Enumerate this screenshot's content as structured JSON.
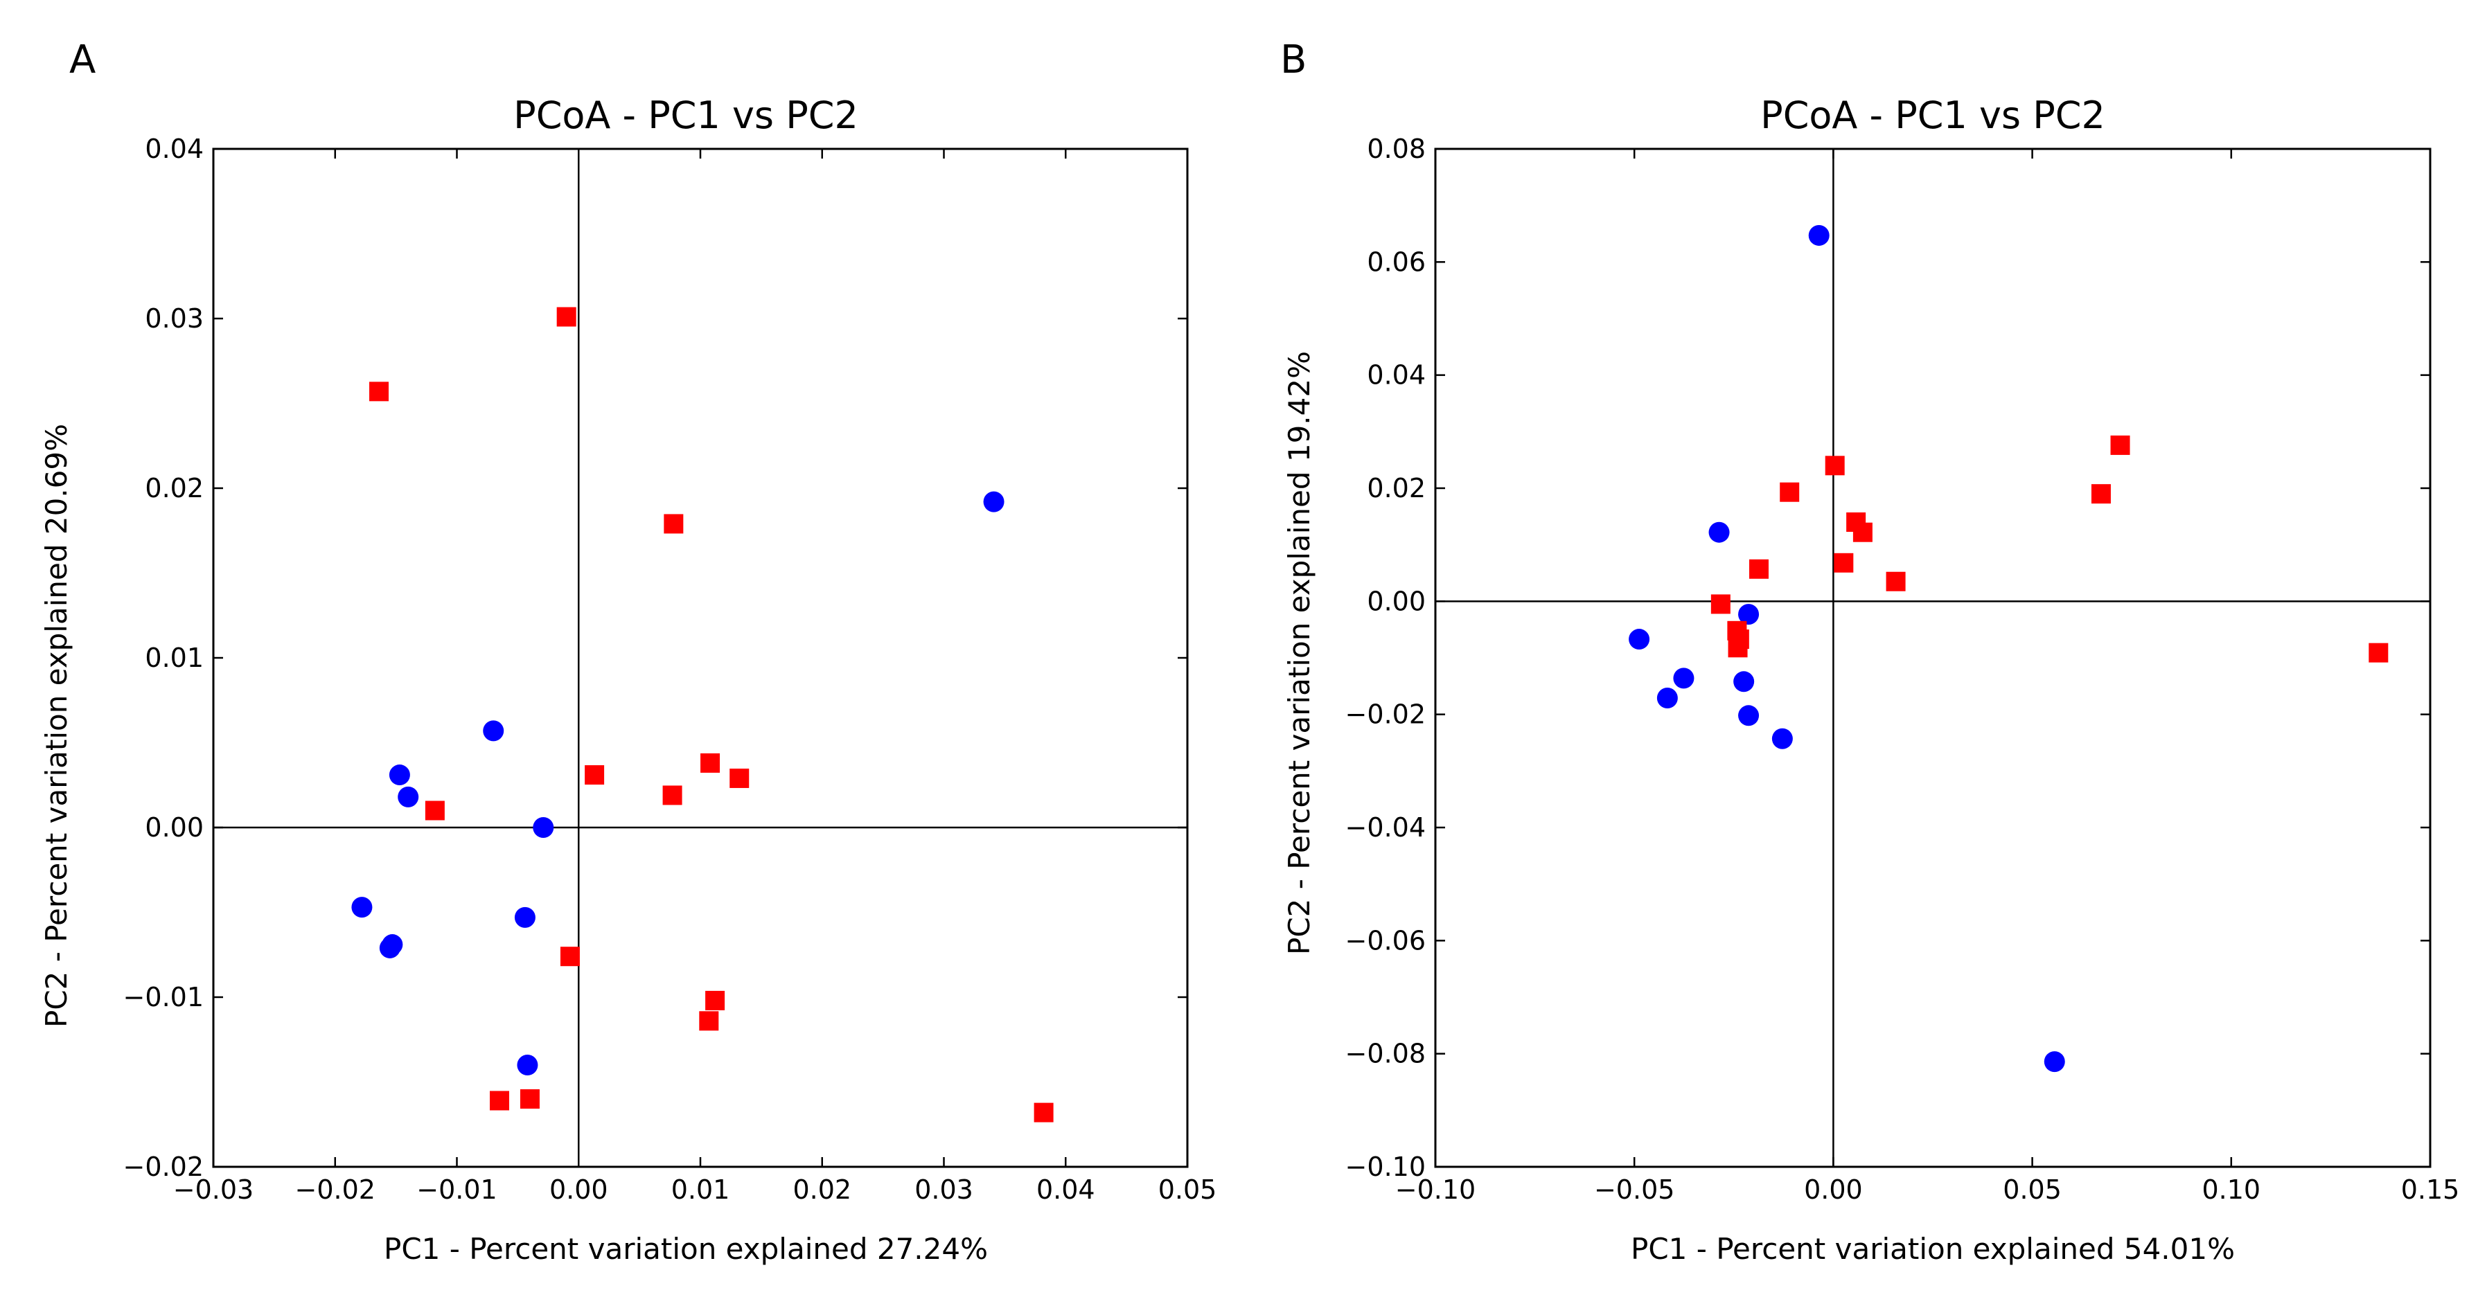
{
  "colors": {
    "group_circle": "#0000ff",
    "group_square": "#ff0000",
    "axis": "#000000"
  },
  "chart_data": [
    {
      "panel": "A",
      "type": "scatter",
      "title": "PCoA - PC1 vs PC2",
      "xlabel": "PC1 - Percent variation explained 27.24%",
      "ylabel": "PC2 - Percent variation explained 20.69%",
      "xlim": [
        -0.03,
        0.05
      ],
      "ylim": [
        -0.02,
        0.04
      ],
      "xticks": [
        -0.03,
        -0.02,
        -0.01,
        0.0,
        0.01,
        0.02,
        0.03,
        0.04,
        0.05
      ],
      "yticks": [
        -0.02,
        -0.01,
        0.0,
        0.01,
        0.02,
        0.03,
        0.04
      ],
      "xtick_labels": [
        "−0.03",
        "−0.02",
        "−0.01",
        "0.00",
        "0.01",
        "0.02",
        "0.03",
        "0.04",
        "0.05"
      ],
      "ytick_labels": [
        "−0.02",
        "−0.01",
        "0.00",
        "0.01",
        "0.02",
        "0.03",
        "0.04"
      ],
      "grid": false,
      "zero_lines": true,
      "series": [
        {
          "name": "blue-circles",
          "marker": "circle",
          "color": "#0000ff",
          "x": [
            -0.007,
            -0.0147,
            -0.014,
            -0.0029,
            -0.0178,
            -0.0155,
            -0.0153,
            -0.0044,
            -0.0042,
            0.0341
          ],
          "y": [
            0.0057,
            0.0031,
            0.0018,
            0.0,
            -0.0047,
            -0.0071,
            -0.0069,
            -0.0053,
            -0.014,
            0.0192
          ]
        },
        {
          "name": "red-squares",
          "marker": "square",
          "color": "#ff0000",
          "x": [
            -0.0164,
            -0.001,
            0.0078,
            -0.0118,
            0.0013,
            0.0108,
            0.0132,
            0.0077,
            -0.0007,
            0.0112,
            0.0107,
            -0.0065,
            -0.004,
            0.0382
          ],
          "y": [
            0.0257,
            0.0301,
            0.0179,
            0.001,
            0.0031,
            0.0038,
            0.0029,
            0.0019,
            -0.0076,
            -0.0102,
            -0.0114,
            -0.0161,
            -0.016,
            -0.0168
          ]
        }
      ]
    },
    {
      "panel": "B",
      "type": "scatter",
      "title": "PCoA - PC1 vs PC2",
      "xlabel": "PC1 - Percent variation explained 54.01%",
      "ylabel": "PC2 - Percent variation explained 19.42%",
      "xlim": [
        -0.1,
        0.15
      ],
      "ylim": [
        -0.1,
        0.08
      ],
      "xticks": [
        -0.1,
        -0.05,
        0.0,
        0.05,
        0.1,
        0.15
      ],
      "yticks": [
        -0.1,
        -0.08,
        -0.06,
        -0.04,
        -0.02,
        0.0,
        0.02,
        0.04,
        0.06,
        0.08
      ],
      "xtick_labels": [
        "−0.10",
        "−0.05",
        "0.00",
        "0.05",
        "0.10",
        "0.15"
      ],
      "ytick_labels": [
        "−0.10",
        "−0.08",
        "−0.06",
        "−0.04",
        "−0.02",
        "0.00",
        "0.02",
        "0.04",
        "0.06",
        "0.08"
      ],
      "grid": false,
      "zero_lines": true,
      "series": [
        {
          "name": "blue-circles",
          "marker": "circle",
          "color": "#0000ff",
          "x": [
            -0.0036,
            -0.0287,
            -0.0213,
            -0.0488,
            -0.0376,
            -0.0417,
            -0.0225,
            -0.0213,
            -0.0128,
            0.0556
          ],
          "y": [
            0.0647,
            0.0122,
            -0.0023,
            -0.0067,
            -0.0136,
            -0.0171,
            -0.0142,
            -0.0202,
            -0.0243,
            -0.0814
          ]
        },
        {
          "name": "red-squares",
          "marker": "square",
          "color": "#ff0000",
          "x": [
            0.0004,
            -0.011,
            0.0057,
            0.0074,
            0.0026,
            -0.0187,
            -0.0283,
            0.0157,
            -0.0242,
            -0.0236,
            -0.024,
            0.0673,
            0.0721,
            0.137
          ],
          "y": [
            0.024,
            0.0193,
            0.014,
            0.0122,
            0.0068,
            0.0057,
            -0.0005,
            0.0035,
            -0.0052,
            -0.0067,
            -0.0082,
            0.019,
            0.0276,
            -0.0091
          ]
        }
      ]
    }
  ]
}
